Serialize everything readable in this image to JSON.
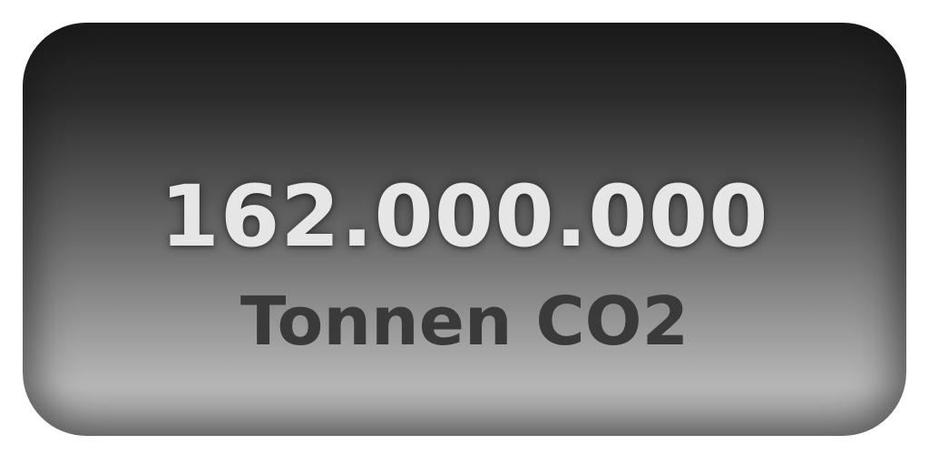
{
  "card": {
    "value": "162.000.000",
    "unit": "Tonnen CO2",
    "value_color": "#e6e6e6",
    "unit_color": "#3a3a3a"
  }
}
